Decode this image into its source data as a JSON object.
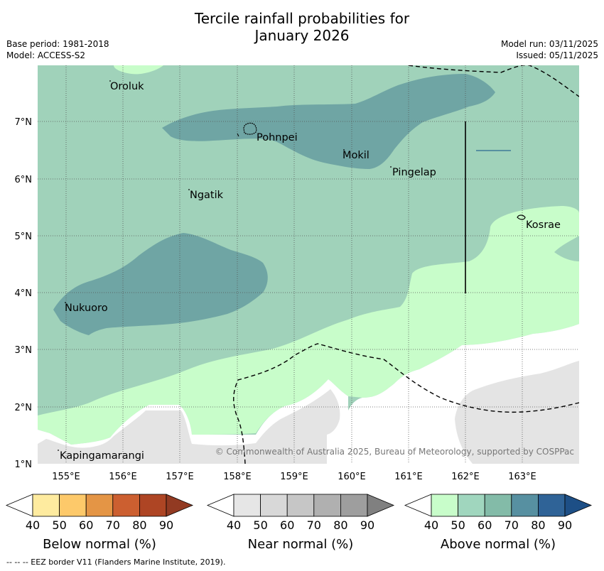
{
  "title": {
    "line1": "Tercile rainfall probabilities for",
    "line2": "January 2026"
  },
  "meta_left": {
    "base_period": "Base period: 1981-2018",
    "model": "Model: ACCESS-S2"
  },
  "meta_right": {
    "model_run": "Model run: 03/11/2025",
    "issued": "Issued: 05/11/2025"
  },
  "map": {
    "lon_ticks": [
      "155°E",
      "156°E",
      "157°E",
      "158°E",
      "159°E",
      "160°E",
      "161°E",
      "162°E",
      "163°E"
    ],
    "lat_ticks": [
      "1°N",
      "2°N",
      "3°N",
      "4°N",
      "5°N",
      "6°N",
      "7°N"
    ],
    "places": [
      {
        "name": "Oroluk"
      },
      {
        "name": "Pohnpei"
      },
      {
        "name": "Mokil"
      },
      {
        "name": "Pingelap"
      },
      {
        "name": "Ngatik"
      },
      {
        "name": "Kosrae"
      },
      {
        "name": "Nukuoro"
      },
      {
        "name": "Kapingamarangi"
      }
    ],
    "copyright": "© Commonwealth of Australia 2025, Bureau of Meteorology, supported by COSPPac"
  },
  "colorbars": [
    {
      "label": "Below normal (%)",
      "ticks": [
        "40",
        "50",
        "60",
        "70",
        "80",
        "90"
      ],
      "colors": [
        "#ffffff",
        "#feeb9f",
        "#fdc96a",
        "#e49545",
        "#cc5f30",
        "#ae4524",
        "#923a22"
      ]
    },
    {
      "label": "Near normal (%)",
      "ticks": [
        "40",
        "50",
        "60",
        "70",
        "80",
        "90"
      ],
      "colors": [
        "#ffffff",
        "#e6e6e6",
        "#d8d8d8",
        "#c6c6c6",
        "#b0b0b0",
        "#9e9e9e",
        "#808080"
      ]
    },
    {
      "label": "Above normal (%)",
      "ticks": [
        "40",
        "50",
        "60",
        "70",
        "80",
        "90"
      ],
      "colors": [
        "#ffffff",
        "#c8fdca",
        "#a0d6be",
        "#83bba8",
        "#5790a1",
        "#2f6397",
        "#1d4f86"
      ]
    }
  ],
  "footnote": "--  --  -- EEZ border V11 (Flanders Marine Institute, 2019)."
}
